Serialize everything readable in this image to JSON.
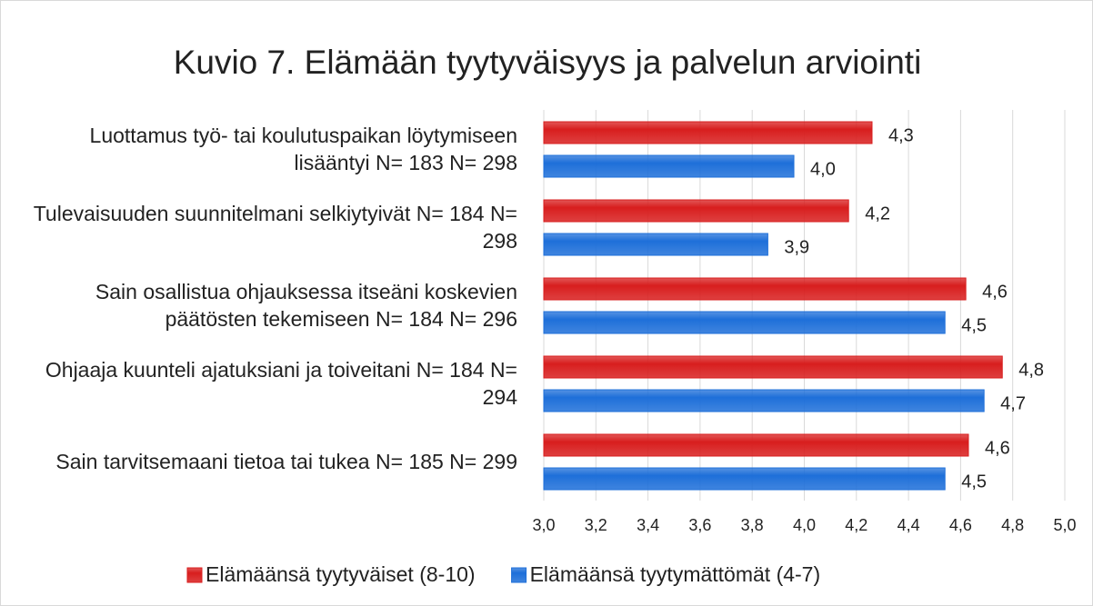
{
  "chart_data": {
    "type": "hbar",
    "title": "Kuvio 7. Elämään tyytyväisyys ja palvelun arviointi",
    "categories": [
      "Luottamus työ- tai koulutuspaikan löytymiseen lisääntyi N= 183 N= 298",
      "Tulevaisuuden suunnitelmani selkiytyivät N= 184 N= 298",
      "Sain osallistua ohjauksessa itseäni koskevien päätösten tekemiseen N= 184 N= 296",
      "Ohjaaja kuunteli ajatuksiani ja toiveitani N= 184 N= 294",
      "Sain tarvitsemaani tietoa tai tukea N= 185 N= 299"
    ],
    "series": [
      {
        "name": "Elämäänsä tyytyväiset (8-10)",
        "color": "#d81e1e",
        "values": [
          4.26,
          4.17,
          4.62,
          4.76,
          4.63
        ],
        "value_labels": [
          "4,3",
          "4,2",
          "4,6",
          "4,8",
          "4,6"
        ]
      },
      {
        "name": "Elämäänsä tyytymättömät (4-7)",
        "color": "#1e6fd9",
        "values": [
          3.96,
          3.86,
          4.54,
          4.69,
          4.54
        ],
        "value_labels": [
          "4,0",
          "3,9",
          "4,5",
          "4,7",
          "4,5"
        ]
      }
    ],
    "xlim": [
      3.0,
      5.0
    ],
    "xticks": [
      {
        "value": 3.0,
        "label": "3,0"
      },
      {
        "value": 3.2,
        "label": "3,2"
      },
      {
        "value": 3.4,
        "label": "3,4"
      },
      {
        "value": 3.6,
        "label": "3,6"
      },
      {
        "value": 3.8,
        "label": "3,8"
      },
      {
        "value": 4.0,
        "label": "4,0"
      },
      {
        "value": 4.2,
        "label": "4,2"
      },
      {
        "value": 4.4,
        "label": "4,4"
      },
      {
        "value": 4.6,
        "label": "4,6"
      },
      {
        "value": 4.8,
        "label": "4,8"
      },
      {
        "value": 5.0,
        "label": "5,0"
      }
    ],
    "grid": true,
    "legend": "bottom"
  }
}
